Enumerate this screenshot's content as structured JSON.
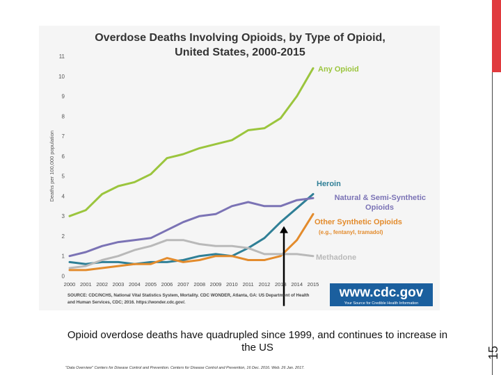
{
  "slide": {
    "number": "15",
    "accent_color": "#e03a3e"
  },
  "caption": "Opioid overdose deaths have quadrupled since 1999, and continues to increase in the US",
  "footnote": "\"Data Overview\" Centers for Disease Control and Prevention. Centers for Disease Control and Prevention, 16 Dec. 2016. Web. 26 Jan. 2017.",
  "source_text": [
    "SOURCE: CDC/NCHS, National Vital Statistics System, Mortality. CDC WONDER, Atlanta, GA: US Department of Health",
    "and Human Services, CDC; 2016. https://wonder.cdc.gov/."
  ],
  "logo": {
    "url_text": "www.cdc.gov",
    "tagline": "Your Source for Credible Health Information"
  },
  "chart_data": {
    "type": "line",
    "title": [
      "Overdose Deaths Involving Opioids, by Type of Opioid,",
      "United States, 2000-2015"
    ],
    "xlabel": "",
    "ylabel": "Deaths per 100,000 population",
    "x": [
      2000,
      2001,
      2002,
      2003,
      2004,
      2005,
      2006,
      2007,
      2008,
      2009,
      2010,
      2011,
      2012,
      2013,
      2014,
      2015
    ],
    "x_tick_labels": [
      "2000",
      "2001",
      "2002",
      "2003",
      "2004",
      "2005",
      "2006",
      "2007",
      "2008",
      "2009",
      "2010",
      "2011",
      "2012",
      "2013",
      "2014",
      "2015"
    ],
    "ylim": [
      0,
      11
    ],
    "y_ticks": [
      0,
      1,
      2,
      3,
      4,
      5,
      6,
      7,
      8,
      9,
      10,
      11
    ],
    "series": [
      {
        "name": "Any Opioid",
        "label_lines": [
          "Any Opioid"
        ],
        "color": "#9bc53d",
        "values": [
          3.0,
          3.3,
          4.1,
          4.5,
          4.7,
          5.1,
          5.9,
          6.1,
          6.4,
          6.6,
          6.8,
          7.3,
          7.4,
          7.9,
          9.0,
          10.4
        ]
      },
      {
        "name": "Heroin",
        "label_lines": [
          "Heroin"
        ],
        "color": "#2f7f96",
        "values": [
          0.7,
          0.6,
          0.7,
          0.7,
          0.6,
          0.7,
          0.7,
          0.8,
          1.0,
          1.1,
          1.0,
          1.4,
          1.9,
          2.7,
          3.4,
          4.1
        ]
      },
      {
        "name": "Natural & Semi-Synthetic Opioids",
        "label_lines": [
          "Natural & Semi-Synthetic",
          "Opioids"
        ],
        "color": "#7b73b5",
        "values": [
          1.0,
          1.2,
          1.5,
          1.7,
          1.8,
          1.9,
          2.3,
          2.7,
          3.0,
          3.1,
          3.5,
          3.7,
          3.5,
          3.5,
          3.8,
          3.9
        ]
      },
      {
        "name": "Other Synthetic Opioids",
        "label_lines": [
          "Other Synthetic Opioids",
          "(e.g., fentanyl, tramadol)"
        ],
        "color": "#e38b2c",
        "values": [
          0.3,
          0.3,
          0.4,
          0.5,
          0.6,
          0.6,
          0.9,
          0.7,
          0.8,
          1.0,
          1.0,
          0.8,
          0.8,
          1.0,
          1.8,
          3.1
        ]
      },
      {
        "name": "Methadone",
        "label_lines": [
          "Methadone"
        ],
        "color": "#b9b9b9",
        "values": [
          0.4,
          0.5,
          0.8,
          1.0,
          1.3,
          1.5,
          1.8,
          1.8,
          1.6,
          1.5,
          1.5,
          1.4,
          1.1,
          1.1,
          1.1,
          1.0
        ]
      }
    ],
    "annotation_arrow": {
      "x": 2013.2,
      "from_y": -1.5,
      "to_y": 2.5,
      "color": "#000000"
    }
  }
}
